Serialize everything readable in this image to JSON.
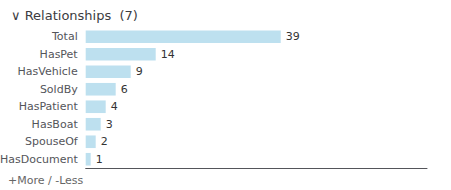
{
  "chart_data": {
    "type": "bar",
    "orientation": "horizontal",
    "title": "∨ Relationships  (7)",
    "categories": [
      "Total",
      "HasPet",
      "HasVehicle",
      "SoldBy",
      "HasPatient",
      "HasBoat",
      "SpouseOf",
      "HasDocument"
    ],
    "values": [
      39,
      14,
      9,
      6,
      4,
      3,
      2,
      1
    ],
    "color": "#bde0ef",
    "xlim": [
      0,
      68.25
    ],
    "annotations": [
      "+More / -Less"
    ],
    "data_labels": true,
    "tick_labels": "y",
    "grid": false
  }
}
